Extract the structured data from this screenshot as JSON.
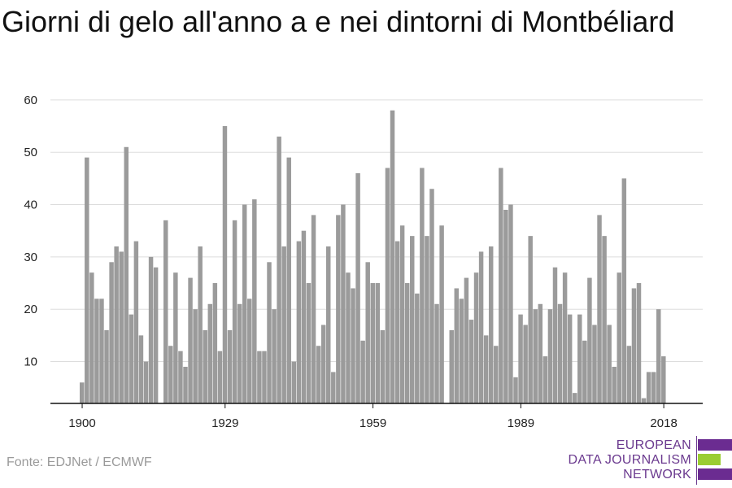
{
  "title": "Giorni di gelo all'anno a e nei dintorni di Montbéliard",
  "source": "Fonte: EDJNet / ECMWF",
  "logo": {
    "line1": "EUROPEAN",
    "line2": "DATA JOURNALISM",
    "line3": "NETWORK",
    "colors": [
      "#6b2c91",
      "#9acd32",
      "#6b2c91"
    ]
  },
  "colors": {
    "bar": "#9b9b9b",
    "grid": "#dddddd",
    "axis": "#111111",
    "text": "#222222"
  },
  "chart_data": {
    "type": "bar",
    "title": "Giorni di gelo all'anno a e nei dintorni di Montbéliard",
    "xlabel": "",
    "ylabel": "",
    "x_start": 1900,
    "x_end": 2018,
    "xticks": [
      1900,
      1929,
      1959,
      1989,
      2018
    ],
    "yticks": [
      10,
      20,
      30,
      40,
      50,
      60
    ],
    "ylim": [
      2,
      62
    ],
    "grid": true,
    "values": [
      6,
      49,
      27,
      22,
      22,
      16,
      29,
      32,
      31,
      51,
      19,
      33,
      15,
      10,
      30,
      28,
      2,
      37,
      13,
      27,
      12,
      9,
      26,
      20,
      32,
      16,
      21,
      25,
      12,
      55,
      16,
      37,
      21,
      40,
      22,
      41,
      12,
      12,
      29,
      20,
      53,
      32,
      49,
      10,
      33,
      35,
      25,
      38,
      13,
      17,
      32,
      8,
      38,
      40,
      27,
      24,
      46,
      14,
      29,
      25,
      25,
      16,
      47,
      58,
      33,
      36,
      25,
      34,
      23,
      47,
      34,
      43,
      21,
      36,
      2,
      16,
      24,
      22,
      26,
      18,
      27,
      31,
      15,
      32,
      13,
      47,
      39,
      40,
      7,
      19,
      17,
      34,
      20,
      21,
      11,
      20,
      28,
      21,
      27,
      19,
      4,
      19,
      14,
      26,
      17,
      38,
      34,
      17,
      9,
      27,
      45,
      13,
      24,
      25,
      3,
      8,
      8,
      20,
      11
    ]
  }
}
